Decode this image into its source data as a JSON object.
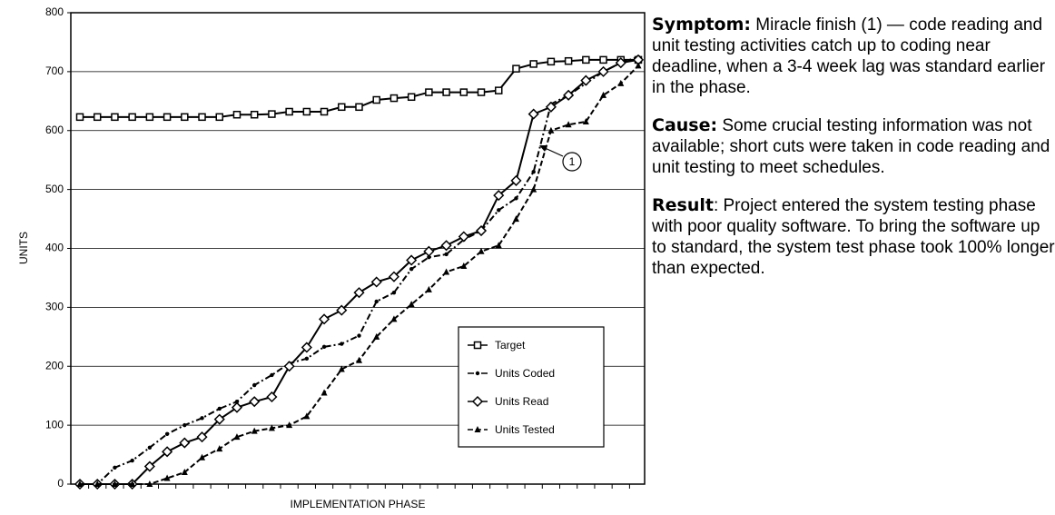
{
  "chart_data": {
    "type": "line",
    "xlabel": "IMPLEMENTATION PHASE",
    "ylabel": "UNITS",
    "categories": [
      null,
      null,
      null,
      null,
      null,
      null,
      null,
      null,
      null,
      null,
      null,
      null,
      null,
      null,
      null,
      null,
      null,
      null,
      null,
      null,
      null,
      null,
      null,
      null,
      null,
      null,
      null,
      null,
      null,
      null,
      null,
      null,
      null
    ],
    "ylim": [
      0,
      800
    ],
    "yticks": [
      0,
      100,
      200,
      300,
      400,
      500,
      600,
      700,
      800
    ],
    "grid": true,
    "legend": "lower right",
    "series": [
      {
        "name": "Target",
        "color": "#000000",
        "marker": "square",
        "dash": "solid",
        "values": [
          623,
          623,
          623,
          623,
          623,
          623,
          623,
          623,
          623,
          627,
          627,
          628,
          632,
          632,
          632,
          640,
          640,
          652,
          655,
          657,
          665,
          665,
          665,
          665,
          668,
          705,
          713,
          717,
          718,
          720,
          720,
          720,
          720
        ]
      },
      {
        "name": "Units Coded",
        "color": "#000000",
        "marker": "dot",
        "dash": "dashdot",
        "values": [
          0,
          0,
          28,
          40,
          62,
          85,
          100,
          112,
          128,
          140,
          168,
          185,
          205,
          213,
          233,
          238,
          252,
          310,
          325,
          365,
          385,
          390,
          415,
          430,
          465,
          485,
          530,
          645,
          660,
          680,
          700,
          715,
          725
        ]
      },
      {
        "name": "Units Read",
        "color": "#000000",
        "marker": "diamond",
        "dash": "solid",
        "values": [
          0,
          0,
          0,
          0,
          30,
          55,
          70,
          80,
          110,
          130,
          140,
          148,
          200,
          232,
          280,
          295,
          325,
          343,
          352,
          380,
          395,
          405,
          420,
          430,
          490,
          515,
          628,
          640,
          660,
          685,
          700,
          715,
          720
        ]
      },
      {
        "name": "Units Tested",
        "color": "#000000",
        "marker": "triangle",
        "dash": "dashed",
        "values": [
          0,
          0,
          0,
          0,
          0,
          10,
          20,
          45,
          60,
          80,
          90,
          95,
          100,
          115,
          155,
          195,
          210,
          250,
          280,
          305,
          330,
          360,
          370,
          395,
          405,
          450,
          500,
          600,
          610,
          615,
          660,
          680,
          710
        ]
      }
    ],
    "annotation": "1"
  },
  "notes": [
    {
      "label": "Symptom:",
      "text": "  Miracle finish (1) — code reading and unit testing activities catch up to coding near deadline, when a 3-4 week lag was standard earlier in the phase."
    },
    {
      "label": "Cause:",
      "text": "  Some crucial testing information was not available; short cuts were taken in code reading and unit testing to meet schedules."
    },
    {
      "label": "Result",
      "text": ":  Project entered the system testing phase with poor quality software.  To bring the software up to standard, the system test phase took 100% longer than expected."
    }
  ]
}
